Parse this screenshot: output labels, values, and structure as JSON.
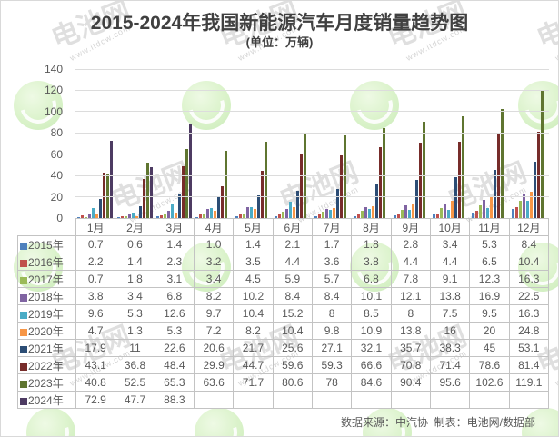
{
  "title": "2015-2024年我国新能源汽车月度销量趋势图",
  "subtitle": "(单位：万辆)",
  "footer": "数据来源：中汽协  制表：电池网/数据部",
  "watermark": {
    "brand": "电池网",
    "site": "www.itdcw.com"
  },
  "chart_data": {
    "type": "bar",
    "title": "2015-2024年我国新能源汽车月度销量趋势图",
    "unit_label": "(单位：万辆)",
    "value_unit": "万辆",
    "categories": [
      "1月",
      "2月",
      "3月",
      "4月",
      "5月",
      "6月",
      "7月",
      "8月",
      "9月",
      "10月",
      "11月",
      "12月"
    ],
    "ylim": [
      0,
      140
    ],
    "yticks": [
      0,
      20,
      40,
      60,
      80,
      100,
      120,
      140
    ],
    "grid": true,
    "legend_position": "data-table-left",
    "series": [
      {
        "name": "2015年",
        "color": "#4F81BD",
        "values": [
          "0.7",
          "0.6",
          "1.4",
          "1.0",
          "1.4",
          "2.1",
          "1.7",
          "1.8",
          "2.8",
          "3.4",
          "5.3",
          "8.4"
        ]
      },
      {
        "name": "2016年",
        "color": "#C0504D",
        "values": [
          "2.2",
          "1.4",
          "2.3",
          "3.2",
          "3.5",
          "4.4",
          "3.6",
          "3.8",
          "4.4",
          "4.4",
          "6.5",
          "10.4"
        ]
      },
      {
        "name": "2017年",
        "color": "#9BBB59",
        "values": [
          "0.7",
          "1.8",
          "3.1",
          "3.4",
          "4.5",
          "5.9",
          "5.7",
          "6.8",
          "7.8",
          "9.1",
          "12.3",
          "16.3"
        ]
      },
      {
        "name": "2018年",
        "color": "#8064A2",
        "values": [
          "3.8",
          "3.4",
          "6.8",
          "8.2",
          "10.2",
          "8.4",
          "8.4",
          "10.1",
          "12.1",
          "13.8",
          "16.9",
          "22.5"
        ]
      },
      {
        "name": "2019年",
        "color": "#4BACC6",
        "values": [
          "9.6",
          "5.3",
          "12.6",
          "9.7",
          "10.4",
          "15.2",
          "8",
          "8.5",
          "8",
          "7.5",
          "9.5",
          "16.3"
        ]
      },
      {
        "name": "2020年",
        "color": "#F79646",
        "values": [
          "4.7",
          "1.3",
          "5.3",
          "7.2",
          "8.2",
          "10.4",
          "9.8",
          "10.9",
          "13.8",
          "16",
          "20",
          "24.8"
        ]
      },
      {
        "name": "2021年",
        "color": "#2C4D75",
        "values": [
          "17.9",
          "11",
          "22.6",
          "20.6",
          "21.7",
          "25.6",
          "27.1",
          "32.1",
          "35.7",
          "38.3",
          "45",
          "53.1"
        ]
      },
      {
        "name": "2022年",
        "color": "#772C2A",
        "values": [
          "43.1",
          "36.8",
          "48.4",
          "29.9",
          "44.7",
          "59.6",
          "59.3",
          "66.6",
          "70.8",
          "71.4",
          "78.6",
          "81.4"
        ]
      },
      {
        "name": "2023年",
        "color": "#5F7530",
        "values": [
          "40.8",
          "52.5",
          "65.3",
          "63.6",
          "71.7",
          "80.6",
          "78",
          "84.6",
          "90.4",
          "95.6",
          "102.6",
          "119.1"
        ]
      },
      {
        "name": "2024年",
        "color": "#4D3B62",
        "values": [
          "72.9",
          "47.7",
          "88.3",
          "",
          "",
          "",
          "",
          "",
          "",
          "",
          "",
          ""
        ]
      }
    ]
  }
}
